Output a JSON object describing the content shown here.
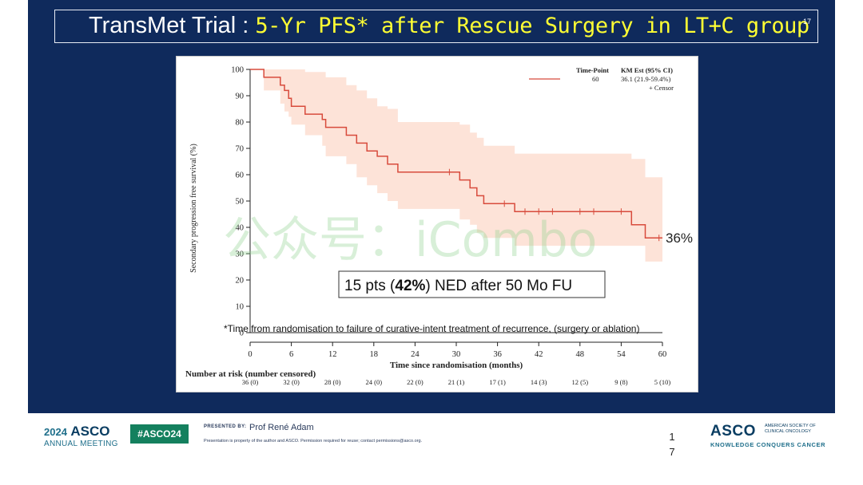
{
  "slide": {
    "title_prefix": "TransMet Trial : ",
    "title_highlight": "5-Yr PFS* after Rescue Surgery in LT+C group",
    "slide_number_top": "17",
    "watermark": "公众号：iCombo"
  },
  "chart_data": {
    "type": "line",
    "ylabel": "Secondary progression free survival (%)",
    "xlabel": "Time since randomisation (months)",
    "ylim": [
      0,
      100
    ],
    "xlim": [
      0,
      60
    ],
    "yticks": [
      "0",
      "10",
      "20",
      "30",
      "40",
      "50",
      "60",
      "70",
      "80",
      "90",
      "100"
    ],
    "xticks": [
      "0",
      "6",
      "12",
      "18",
      "24",
      "30",
      "36",
      "42",
      "48",
      "54",
      "60"
    ],
    "series": [
      {
        "kind": "km-step",
        "points": [
          [
            0,
            100
          ],
          [
            2,
            100
          ],
          [
            2,
            97
          ],
          [
            4.4,
            97
          ],
          [
            4.4,
            94
          ],
          [
            5,
            94
          ],
          [
            5,
            92
          ],
          [
            5.6,
            92
          ],
          [
            5.6,
            89
          ],
          [
            6,
            89
          ],
          [
            6,
            86
          ],
          [
            8,
            86
          ],
          [
            8,
            83
          ],
          [
            10.5,
            83
          ],
          [
            10.5,
            81
          ],
          [
            11,
            81
          ],
          [
            11,
            78
          ],
          [
            14,
            78
          ],
          [
            14,
            75
          ],
          [
            15.5,
            75
          ],
          [
            15.5,
            72
          ],
          [
            17,
            72
          ],
          [
            17,
            69
          ],
          [
            18.5,
            69
          ],
          [
            18.5,
            67
          ],
          [
            20,
            67
          ],
          [
            20,
            64
          ],
          [
            21.5,
            64
          ],
          [
            21.5,
            61
          ],
          [
            30.5,
            61
          ],
          [
            30.5,
            58
          ],
          [
            32,
            58
          ],
          [
            32,
            55
          ],
          [
            33,
            55
          ],
          [
            33,
            52
          ],
          [
            34,
            52
          ],
          [
            34,
            49
          ],
          [
            38.5,
            49
          ],
          [
            38.5,
            46
          ],
          [
            55.5,
            46
          ],
          [
            55.5,
            41
          ],
          [
            57.5,
            41
          ],
          [
            57.5,
            36
          ],
          [
            60,
            36
          ]
        ]
      }
    ],
    "ci_band": {
      "upper": [
        [
          0,
          100
        ],
        [
          2,
          100
        ],
        [
          5,
          100
        ],
        [
          6,
          100
        ],
        [
          8,
          99
        ],
        [
          11,
          97
        ],
        [
          14,
          94
        ],
        [
          15.5,
          92
        ],
        [
          17,
          89
        ],
        [
          18.5,
          86
        ],
        [
          20,
          85
        ],
        [
          21.5,
          80
        ],
        [
          30.5,
          79
        ],
        [
          32,
          76
        ],
        [
          33,
          74
        ],
        [
          34,
          71
        ],
        [
          38.5,
          68
        ],
        [
          55.5,
          66
        ],
        [
          57.5,
          59
        ],
        [
          60,
          59
        ]
      ],
      "lower": [
        [
          0,
          100
        ],
        [
          2,
          92
        ],
        [
          4.4,
          87
        ],
        [
          5,
          84
        ],
        [
          5.6,
          82
        ],
        [
          6,
          79
        ],
        [
          8,
          75
        ],
        [
          10.5,
          71
        ],
        [
          11,
          67
        ],
        [
          14,
          64
        ],
        [
          15.5,
          59
        ],
        [
          17,
          56
        ],
        [
          18.5,
          53
        ],
        [
          20,
          50
        ],
        [
          21.5,
          47
        ],
        [
          30.5,
          43
        ],
        [
          32,
          41
        ],
        [
          33,
          38
        ],
        [
          34,
          36
        ],
        [
          38.5,
          33
        ],
        [
          55.5,
          33
        ],
        [
          57.5,
          27
        ],
        [
          60,
          22
        ]
      ]
    },
    "censor_times": [
      [
        29,
        61
      ],
      [
        37,
        49
      ],
      [
        40,
        46
      ],
      [
        42,
        46
      ],
      [
        44,
        46
      ],
      [
        48,
        46
      ],
      [
        50,
        46
      ],
      [
        54,
        46
      ],
      [
        59.5,
        36
      ]
    ],
    "legend": {
      "header_tp": "Time-Point",
      "header_km": "KM Est (95% CI)",
      "tp": "60",
      "km": "36.1 (21.9-59.4%)",
      "censor_label": "+ Censor"
    },
    "end_label": "36%",
    "callout": {
      "before": "15 pts (",
      "bold": "42%",
      "after": ") NED after 50 Mo FU"
    },
    "footnote": "*Time from randomisation to failure of curative-intent  treatment of recurrence, (surgery or ablation)",
    "risk_title": "Number at risk (number censored)",
    "risk_values": [
      "36 (0)",
      "32 (0)",
      "28 (0)",
      "24 (0)",
      "22 (0)",
      "21 (1)",
      "17 (1)",
      "14 (3)",
      "12 (5)",
      "9 (8)",
      "5 (10)"
    ],
    "colors": {
      "line": "#d84b3c",
      "band": "#fde3d8",
      "axis": "#222222"
    }
  },
  "footer": {
    "year": "2024",
    "asco": "ASCO",
    "annual": "ANNUAL MEETING",
    "hashtag": "#ASCO24",
    "presented_by": "PRESENTED BY:",
    "presenter": "Prof René Adam",
    "permission": "Presentation is property of the author and ASCO. Permission required for reuse; contact permissions@asco.org.",
    "page_line1": "1",
    "page_line2": "7",
    "right_asco": "ASCO",
    "right_small": "AMERICAN SOCIETY OF CLINICAL ONCOLOGY",
    "right_tagline": "KNOWLEDGE CONQUERS CANCER"
  }
}
